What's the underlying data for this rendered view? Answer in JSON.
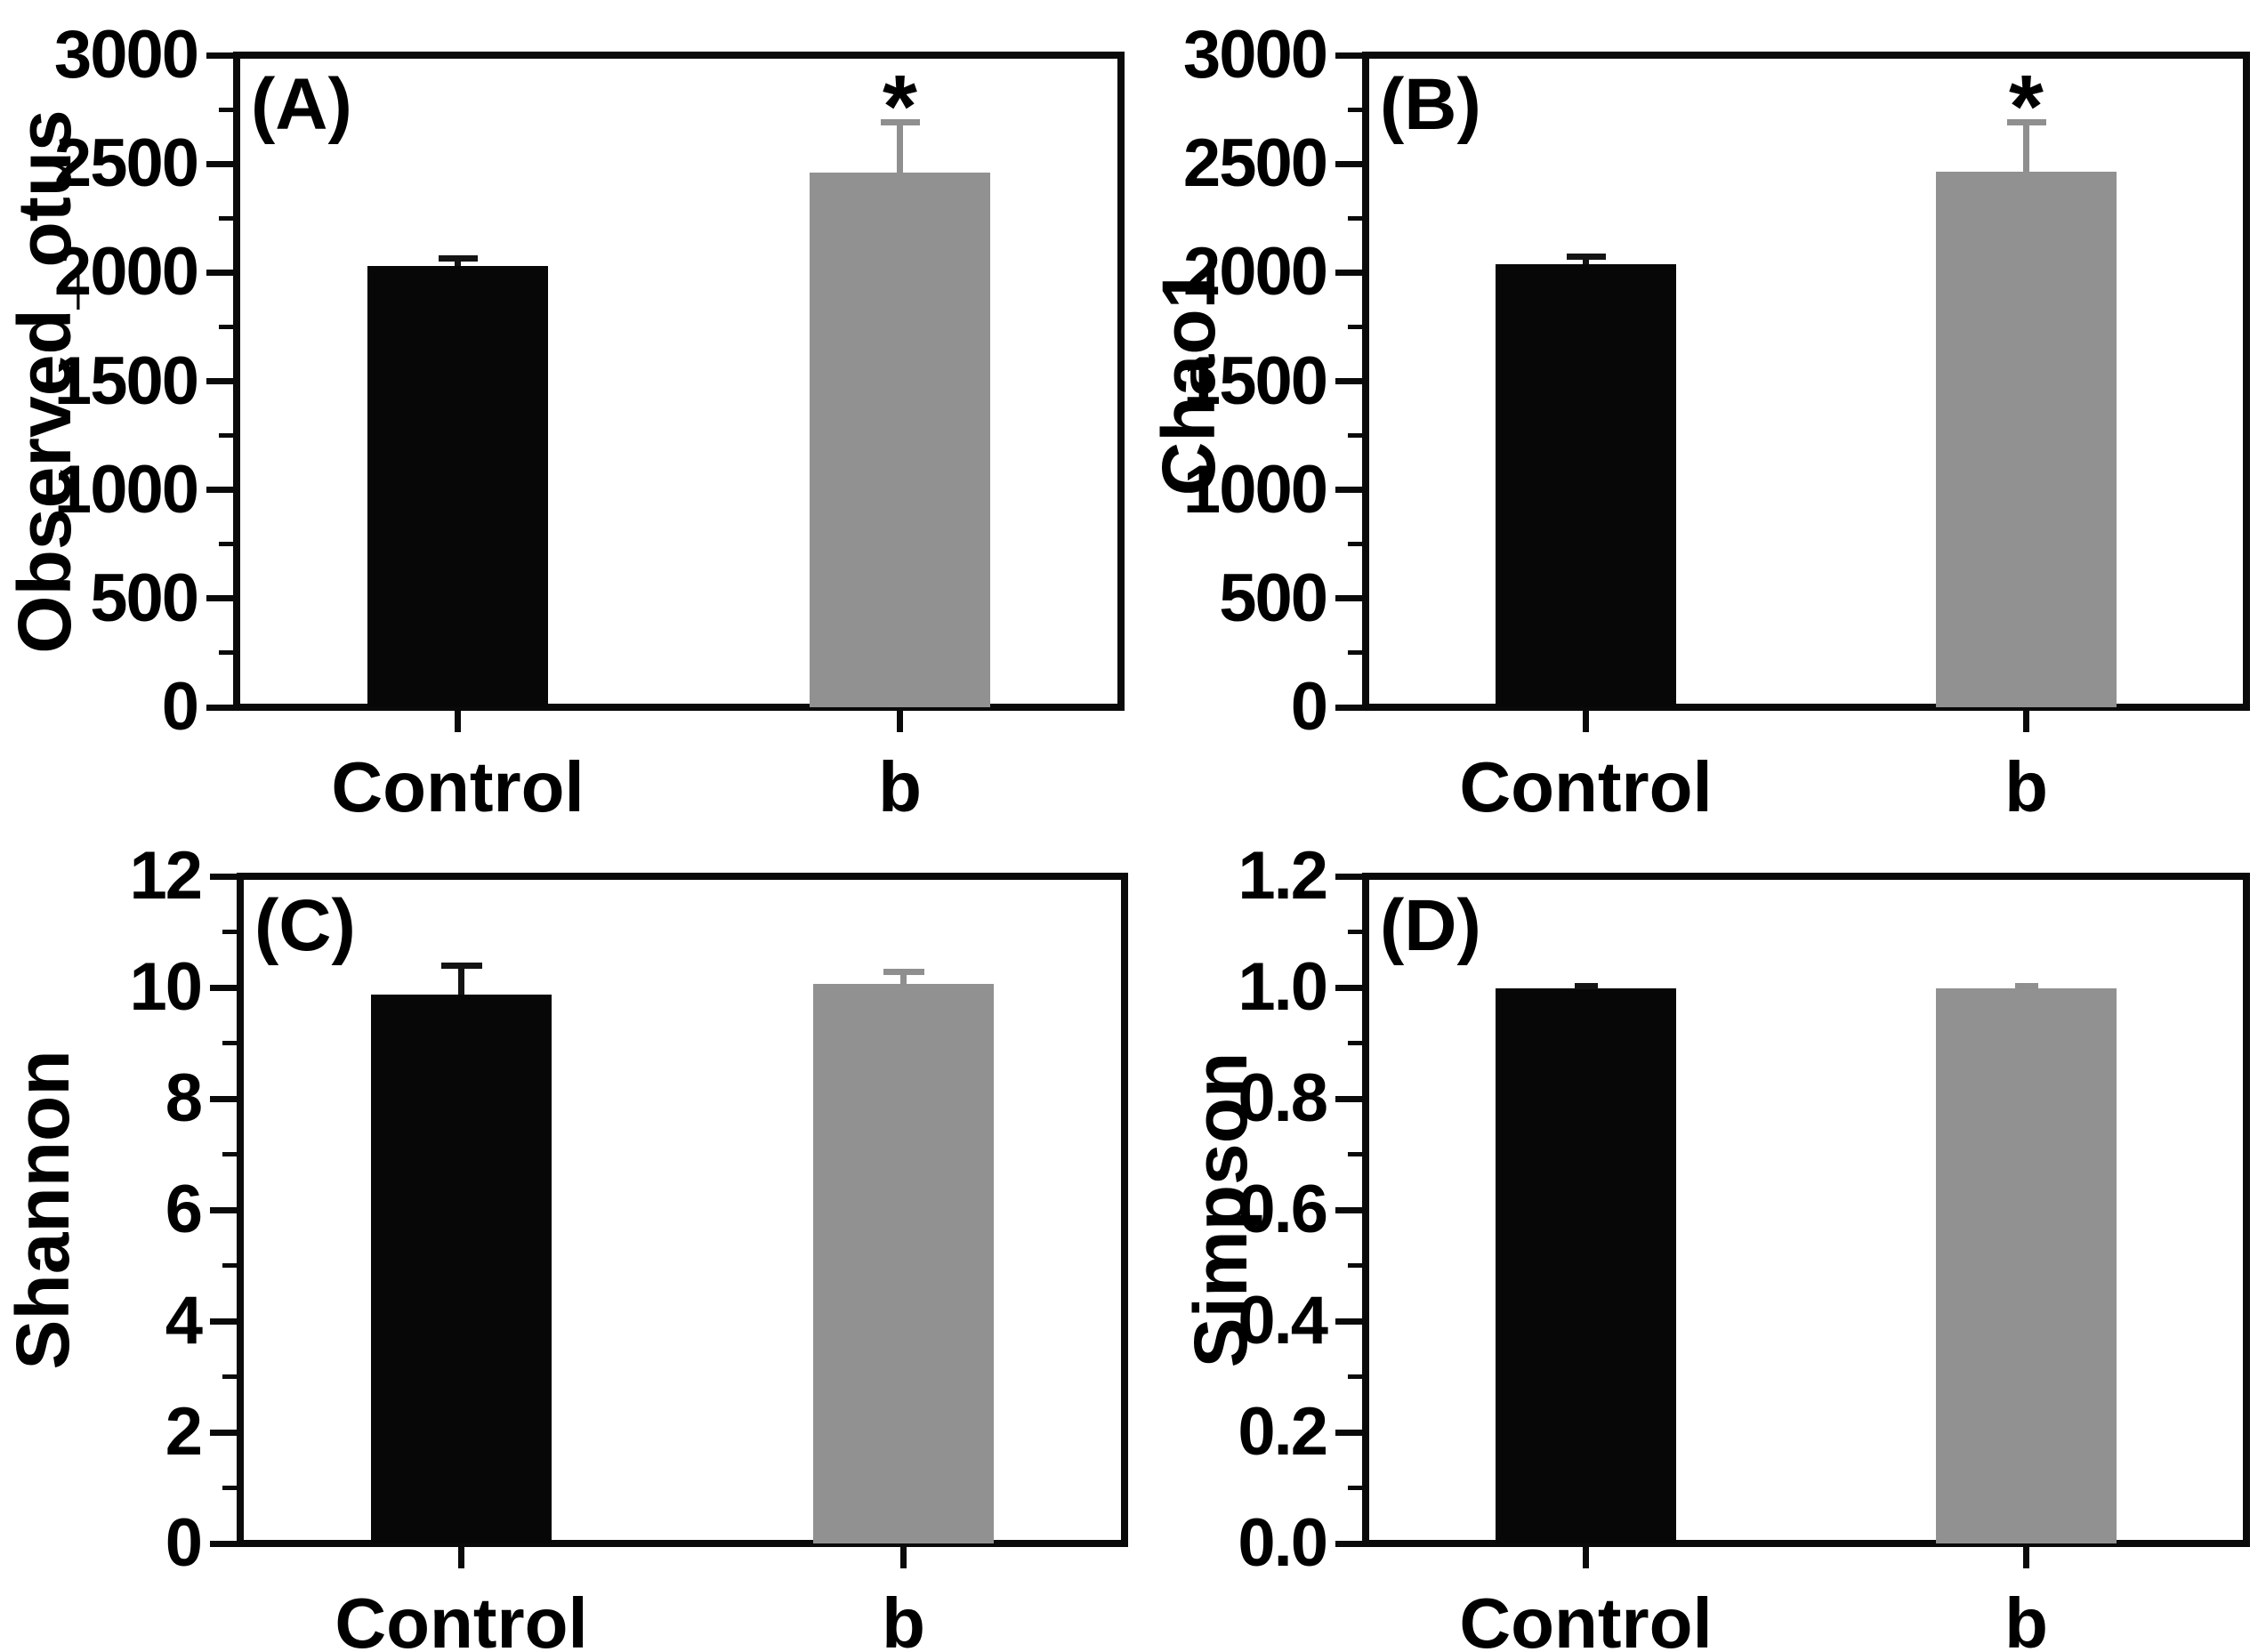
{
  "figure": {
    "background_color": "#ffffff",
    "significance_marker": "*"
  },
  "chart_data": [
    {
      "panel_label": "(A)",
      "type": "bar",
      "title": "",
      "xlabel": "",
      "ylabel": "Observed_otus",
      "ylim": [
        0,
        3000
      ],
      "ytick_step": 500,
      "yminor_step": 250,
      "ytick_labels": [
        "0",
        "500",
        "1000",
        "1500",
        "2000",
        "2500",
        "3000"
      ],
      "categories": [
        "Control",
        "b"
      ],
      "grid": false,
      "legend": "none",
      "series": [
        {
          "name": "Control",
          "value": 2030,
          "error_up": 35,
          "bar_color": "#070707",
          "error_color": "#141414",
          "significance": ""
        },
        {
          "name": "b",
          "value": 2460,
          "error_up": 230,
          "bar_color": "#919191",
          "error_color": "#8f8f8f",
          "significance": "*"
        }
      ]
    },
    {
      "panel_label": "(B)",
      "type": "bar",
      "title": "",
      "xlabel": "",
      "ylabel": "Chao1",
      "ylim": [
        0,
        3000
      ],
      "ytick_step": 500,
      "yminor_step": 250,
      "ytick_labels": [
        "0",
        "500",
        "1000",
        "1500",
        "2000",
        "2500",
        "3000"
      ],
      "categories": [
        "Control",
        "b"
      ],
      "grid": false,
      "legend": "none",
      "series": [
        {
          "name": "Control",
          "value": 2040,
          "error_up": 35,
          "bar_color": "#070707",
          "error_color": "#141414",
          "significance": ""
        },
        {
          "name": "b",
          "value": 2465,
          "error_up": 225,
          "bar_color": "#919191",
          "error_color": "#8f8f8f",
          "significance": "*"
        }
      ]
    },
    {
      "panel_label": "(C)",
      "type": "bar",
      "title": "",
      "xlabel": "",
      "ylabel": "Shannon",
      "ylim": [
        0,
        12
      ],
      "ytick_step": 2,
      "yminor_step": 1,
      "ytick_labels": [
        "0",
        "2",
        "4",
        "6",
        "8",
        "10",
        "12"
      ],
      "categories": [
        "Control",
        "b"
      ],
      "grid": false,
      "legend": "none",
      "series": [
        {
          "name": "Control",
          "value": 9.88,
          "error_up": 0.52,
          "bar_color": "#070707",
          "error_color": "#141414",
          "significance": ""
        },
        {
          "name": "b",
          "value": 10.06,
          "error_up": 0.22,
          "bar_color": "#919191",
          "error_color": "#8f8f8f",
          "significance": ""
        }
      ]
    },
    {
      "panel_label": "(D)",
      "type": "bar",
      "title": "",
      "xlabel": "",
      "ylabel": "Simpson",
      "ylim": [
        0,
        1.2
      ],
      "ytick_step": 0.2,
      "yminor_step": 0.1,
      "ytick_labels": [
        "0.0",
        "0.2",
        "0.4",
        "0.6",
        "0.8",
        "1.0",
        "1.2"
      ],
      "categories": [
        "Control",
        "b"
      ],
      "grid": false,
      "legend": "none",
      "series": [
        {
          "name": "Control",
          "value": 0.998,
          "error_up": 0.004,
          "bar_color": "#070707",
          "error_color": "#141414",
          "significance": ""
        },
        {
          "name": "b",
          "value": 0.999,
          "error_up": 0.004,
          "bar_color": "#919191",
          "error_color": "#8f8f8f",
          "significance": ""
        }
      ]
    }
  ]
}
